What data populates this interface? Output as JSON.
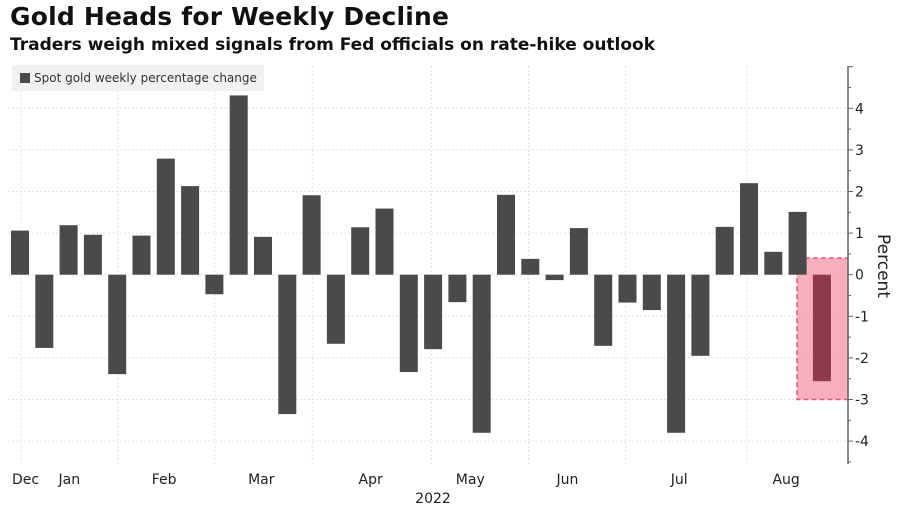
{
  "chart_data": {
    "type": "bar",
    "title": "Gold Heads for Weekly Decline",
    "subtitle": "Traders weigh mixed signals from Fed officials on rate-hike outlook",
    "legend": [
      {
        "label": "Spot gold weekly percentage change",
        "color": "#4a4a4d"
      }
    ],
    "legend_position": "top-left",
    "xlabel": "2022",
    "ylabel": "Percent",
    "ylim": [
      -4.5,
      5
    ],
    "yticks": [
      4,
      3,
      2,
      1,
      0,
      -1,
      -2,
      -3,
      -4
    ],
    "ytick_labels": [
      "4",
      "3",
      "2",
      "1",
      "0",
      "-1",
      "-2",
      "-3",
      "-4"
    ],
    "grid": true,
    "x_month_labels": [
      {
        "label": "Dec",
        "week_index": 0.6
      },
      {
        "label": "Jan",
        "week_index": 2.4
      },
      {
        "label": "Feb",
        "week_index": 6.3
      },
      {
        "label": "Mar",
        "week_index": 10.3
      },
      {
        "label": "Apr",
        "week_index": 14.8
      },
      {
        "label": "May",
        "week_index": 18.9
      },
      {
        "label": "Jun",
        "week_index": 22.9
      },
      {
        "label": "Jul",
        "week_index": 27.5
      },
      {
        "label": "Aug",
        "week_index": 31.9
      }
    ],
    "x_gridlines_at_week": [
      0.4,
      4.4,
      8.4,
      12.4,
      17.3,
      21.3,
      25.3,
      30.3
    ],
    "values": [
      1.06,
      -1.76,
      1.19,
      0.96,
      -2.39,
      0.94,
      2.79,
      2.13,
      -0.47,
      4.31,
      0.91,
      -3.35,
      1.91,
      -1.66,
      1.14,
      1.59,
      -2.34,
      -1.79,
      -0.66,
      -3.8,
      1.92,
      0.38,
      -0.13,
      1.12,
      -1.71,
      -0.67,
      -0.85,
      -3.8,
      -1.95,
      1.15,
      2.2,
      0.55,
      1.51,
      -2.56
    ],
    "bar_color": "#4a4a4d",
    "highlight": {
      "index": 33,
      "bar_color": "#8e3a4a",
      "box_fill": "#f7a1b0",
      "box_stroke": "#e8577a",
      "box_y_range": [
        -3.0,
        0.4
      ]
    }
  }
}
